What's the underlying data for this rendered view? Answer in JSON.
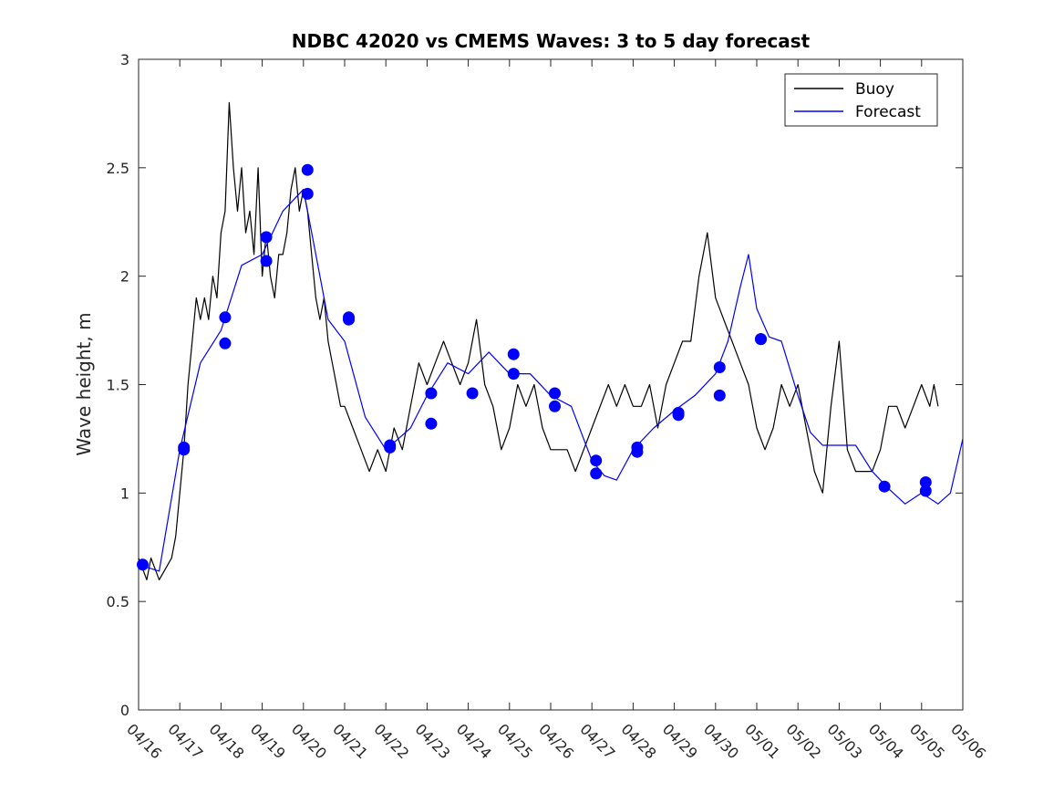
{
  "chart_data": {
    "type": "line",
    "title": "NDBC 42020 vs CMEMS Waves: 3 to 5 day forecast",
    "ylabel": "Wave height, m",
    "xlabel": "",
    "ylim": [
      0,
      3
    ],
    "xlim": [
      0,
      20
    ],
    "yticks": [
      0,
      0.5,
      1,
      1.5,
      2,
      2.5,
      3
    ],
    "yticklabels": [
      "0",
      "0.5",
      "1",
      "1.5",
      "2",
      "2.5",
      "3"
    ],
    "xticklabels": [
      "04/16",
      "04/17",
      "04/18",
      "04/19",
      "04/20",
      "04/21",
      "04/22",
      "04/23",
      "04/24",
      "04/25",
      "04/26",
      "04/27",
      "04/28",
      "04/29",
      "04/30",
      "05/01",
      "05/02",
      "05/03",
      "05/04",
      "05/05",
      "05/06"
    ],
    "legend": {
      "position": "top-right",
      "entries": [
        {
          "label": "Buoy",
          "color": "#000000"
        },
        {
          "label": "Forecast",
          "color": "#0000ff"
        }
      ]
    },
    "series": [
      {
        "name": "Buoy",
        "color": "#000000",
        "x": [
          0,
          0.2,
          0.3,
          0.5,
          0.8,
          0.9,
          1.0,
          1.1,
          1.2,
          1.3,
          1.4,
          1.5,
          1.6,
          1.7,
          1.8,
          1.9,
          2.0,
          2.1,
          2.2,
          2.3,
          2.4,
          2.5,
          2.6,
          2.7,
          2.8,
          2.9,
          3.0,
          3.1,
          3.2,
          3.3,
          3.4,
          3.5,
          3.6,
          3.7,
          3.8,
          3.9,
          4.0,
          4.1,
          4.2,
          4.3,
          4.4,
          4.5,
          4.6,
          4.7,
          4.8,
          4.9,
          5.0,
          5.2,
          5.4,
          5.6,
          5.8,
          6.0,
          6.2,
          6.4,
          6.5,
          6.6,
          6.8,
          7.0,
          7.2,
          7.4,
          7.6,
          7.8,
          8.0,
          8.2,
          8.4,
          8.6,
          8.8,
          9.0,
          9.2,
          9.4,
          9.6,
          9.8,
          10.0,
          10.2,
          10.4,
          10.6,
          10.8,
          11.0,
          11.2,
          11.4,
          11.6,
          11.8,
          12.0,
          12.2,
          12.4,
          12.6,
          12.8,
          13.0,
          13.2,
          13.4,
          13.6,
          13.8,
          14.0,
          14.2,
          14.4,
          14.6,
          14.8,
          14.9,
          15.0,
          15.2,
          15.4,
          15.6,
          15.8,
          16.0,
          16.2,
          16.4,
          16.6,
          16.8,
          17.0,
          17.2,
          17.4,
          17.6,
          17.8,
          18.0,
          18.2,
          18.4,
          18.6,
          18.8,
          19.0,
          19.2,
          19.3,
          19.4
        ],
        "y": [
          0.7,
          0.6,
          0.7,
          0.6,
          0.7,
          0.8,
          1.0,
          1.2,
          1.5,
          1.7,
          1.9,
          1.8,
          1.9,
          1.8,
          2.0,
          1.9,
          2.2,
          2.3,
          2.8,
          2.5,
          2.3,
          2.5,
          2.2,
          2.3,
          2.1,
          2.5,
          2.0,
          2.2,
          2.0,
          1.9,
          2.1,
          2.1,
          2.2,
          2.4,
          2.5,
          2.3,
          2.4,
          2.3,
          2.1,
          1.9,
          1.8,
          1.9,
          1.7,
          1.6,
          1.5,
          1.4,
          1.4,
          1.3,
          1.2,
          1.1,
          1.2,
          1.1,
          1.3,
          1.2,
          1.3,
          1.4,
          1.6,
          1.5,
          1.6,
          1.7,
          1.6,
          1.5,
          1.6,
          1.8,
          1.5,
          1.4,
          1.2,
          1.3,
          1.5,
          1.4,
          1.5,
          1.3,
          1.2,
          1.2,
          1.2,
          1.1,
          1.2,
          1.3,
          1.4,
          1.5,
          1.4,
          1.5,
          1.4,
          1.4,
          1.5,
          1.3,
          1.5,
          1.6,
          1.7,
          1.7,
          2.0,
          2.2,
          1.9,
          1.8,
          1.7,
          1.6,
          1.5,
          1.4,
          1.3,
          1.2,
          1.3,
          1.5,
          1.4,
          1.5,
          1.3,
          1.1,
          1.0,
          1.4,
          1.7,
          1.2,
          1.1,
          1.1,
          1.1,
          1.2,
          1.4,
          1.4,
          1.3,
          1.4,
          1.5,
          1.4,
          1.5,
          1.4
        ]
      },
      {
        "name": "Forecast",
        "color": "#0000ff",
        "x": [
          0,
          0.5,
          1.0,
          1.5,
          2.0,
          2.5,
          3.0,
          3.5,
          4.0,
          4.3,
          4.6,
          5.0,
          5.5,
          6.0,
          6.3,
          6.6,
          7.0,
          7.5,
          8.0,
          8.5,
          9.0,
          9.5,
          10.0,
          10.5,
          11.0,
          11.3,
          11.6,
          12.0,
          12.5,
          13.0,
          13.5,
          14.0,
          14.3,
          14.6,
          14.8,
          15.0,
          15.3,
          15.6,
          16.0,
          16.3,
          16.6,
          17.0,
          17.4,
          17.8,
          18.2,
          18.6,
          19.0,
          19.4,
          19.7,
          20.0
        ],
        "y": [
          0.67,
          0.64,
          1.2,
          1.6,
          1.75,
          2.05,
          2.1,
          2.3,
          2.4,
          2.1,
          1.8,
          1.7,
          1.35,
          1.2,
          1.25,
          1.3,
          1.45,
          1.6,
          1.55,
          1.65,
          1.55,
          1.55,
          1.45,
          1.4,
          1.15,
          1.08,
          1.06,
          1.2,
          1.3,
          1.38,
          1.45,
          1.55,
          1.7,
          1.95,
          2.1,
          1.85,
          1.72,
          1.7,
          1.45,
          1.28,
          1.22,
          1.22,
          1.22,
          1.1,
          1.02,
          0.95,
          1.0,
          0.95,
          1.0,
          1.25
        ]
      }
    ],
    "markers": {
      "name": "Forecast",
      "color": "#0000ff",
      "points": [
        [
          0.1,
          0.67
        ],
        [
          1.1,
          1.21
        ],
        [
          1.1,
          1.2
        ],
        [
          2.1,
          1.81
        ],
        [
          2.1,
          1.69
        ],
        [
          3.1,
          2.18
        ],
        [
          3.1,
          2.07
        ],
        [
          4.1,
          2.49
        ],
        [
          4.1,
          2.38
        ],
        [
          5.1,
          1.81
        ],
        [
          5.1,
          1.8
        ],
        [
          6.1,
          1.22
        ],
        [
          6.1,
          1.21
        ],
        [
          7.1,
          1.46
        ],
        [
          7.1,
          1.32
        ],
        [
          8.1,
          1.46
        ],
        [
          9.1,
          1.64
        ],
        [
          9.1,
          1.55
        ],
        [
          10.1,
          1.46
        ],
        [
          10.1,
          1.4
        ],
        [
          11.1,
          1.15
        ],
        [
          11.1,
          1.09
        ],
        [
          12.1,
          1.21
        ],
        [
          12.1,
          1.19
        ],
        [
          13.1,
          1.37
        ],
        [
          13.1,
          1.36
        ],
        [
          14.1,
          1.58
        ],
        [
          14.1,
          1.45
        ],
        [
          15.1,
          1.71
        ],
        [
          15.1,
          1.71
        ],
        [
          18.1,
          1.03
        ],
        [
          19.1,
          1.05
        ],
        [
          19.1,
          1.01
        ]
      ]
    }
  }
}
